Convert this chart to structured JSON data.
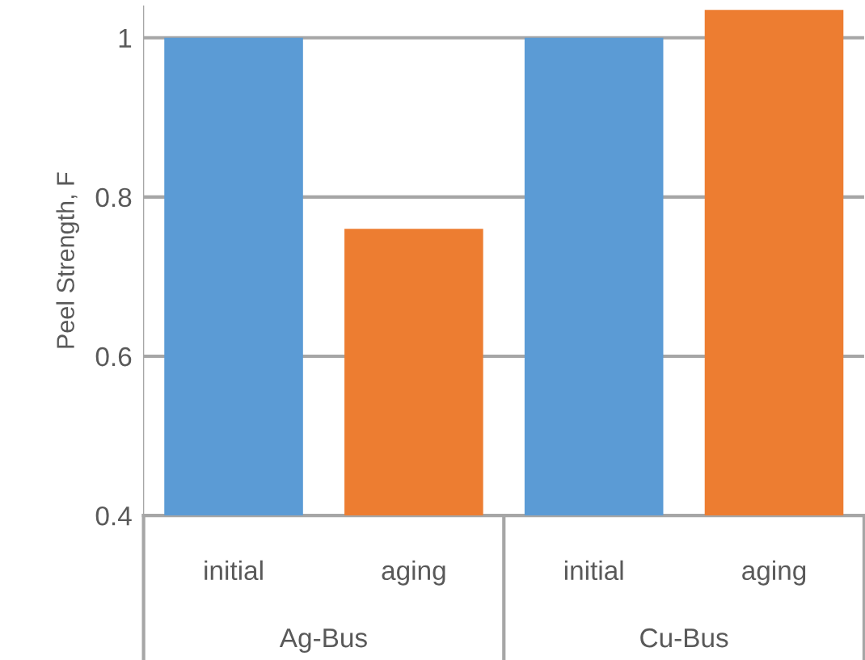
{
  "chart_data": {
    "type": "bar",
    "ylabel": "Peel Strength, F",
    "categories": [
      "initial",
      "aging",
      "initial",
      "aging"
    ],
    "values": [
      1.0,
      0.76,
      1.0,
      1.035
    ],
    "colors": [
      "#5b9bd5",
      "#ed7d31",
      "#5b9bd5",
      "#ed7d31"
    ],
    "annotations": [
      "Ag-Bus",
      "Cu-Bus"
    ],
    "ylim": [
      0.4,
      1.04
    ],
    "yticks": [
      0.4,
      0.6,
      0.8,
      1
    ],
    "grid": "y"
  }
}
